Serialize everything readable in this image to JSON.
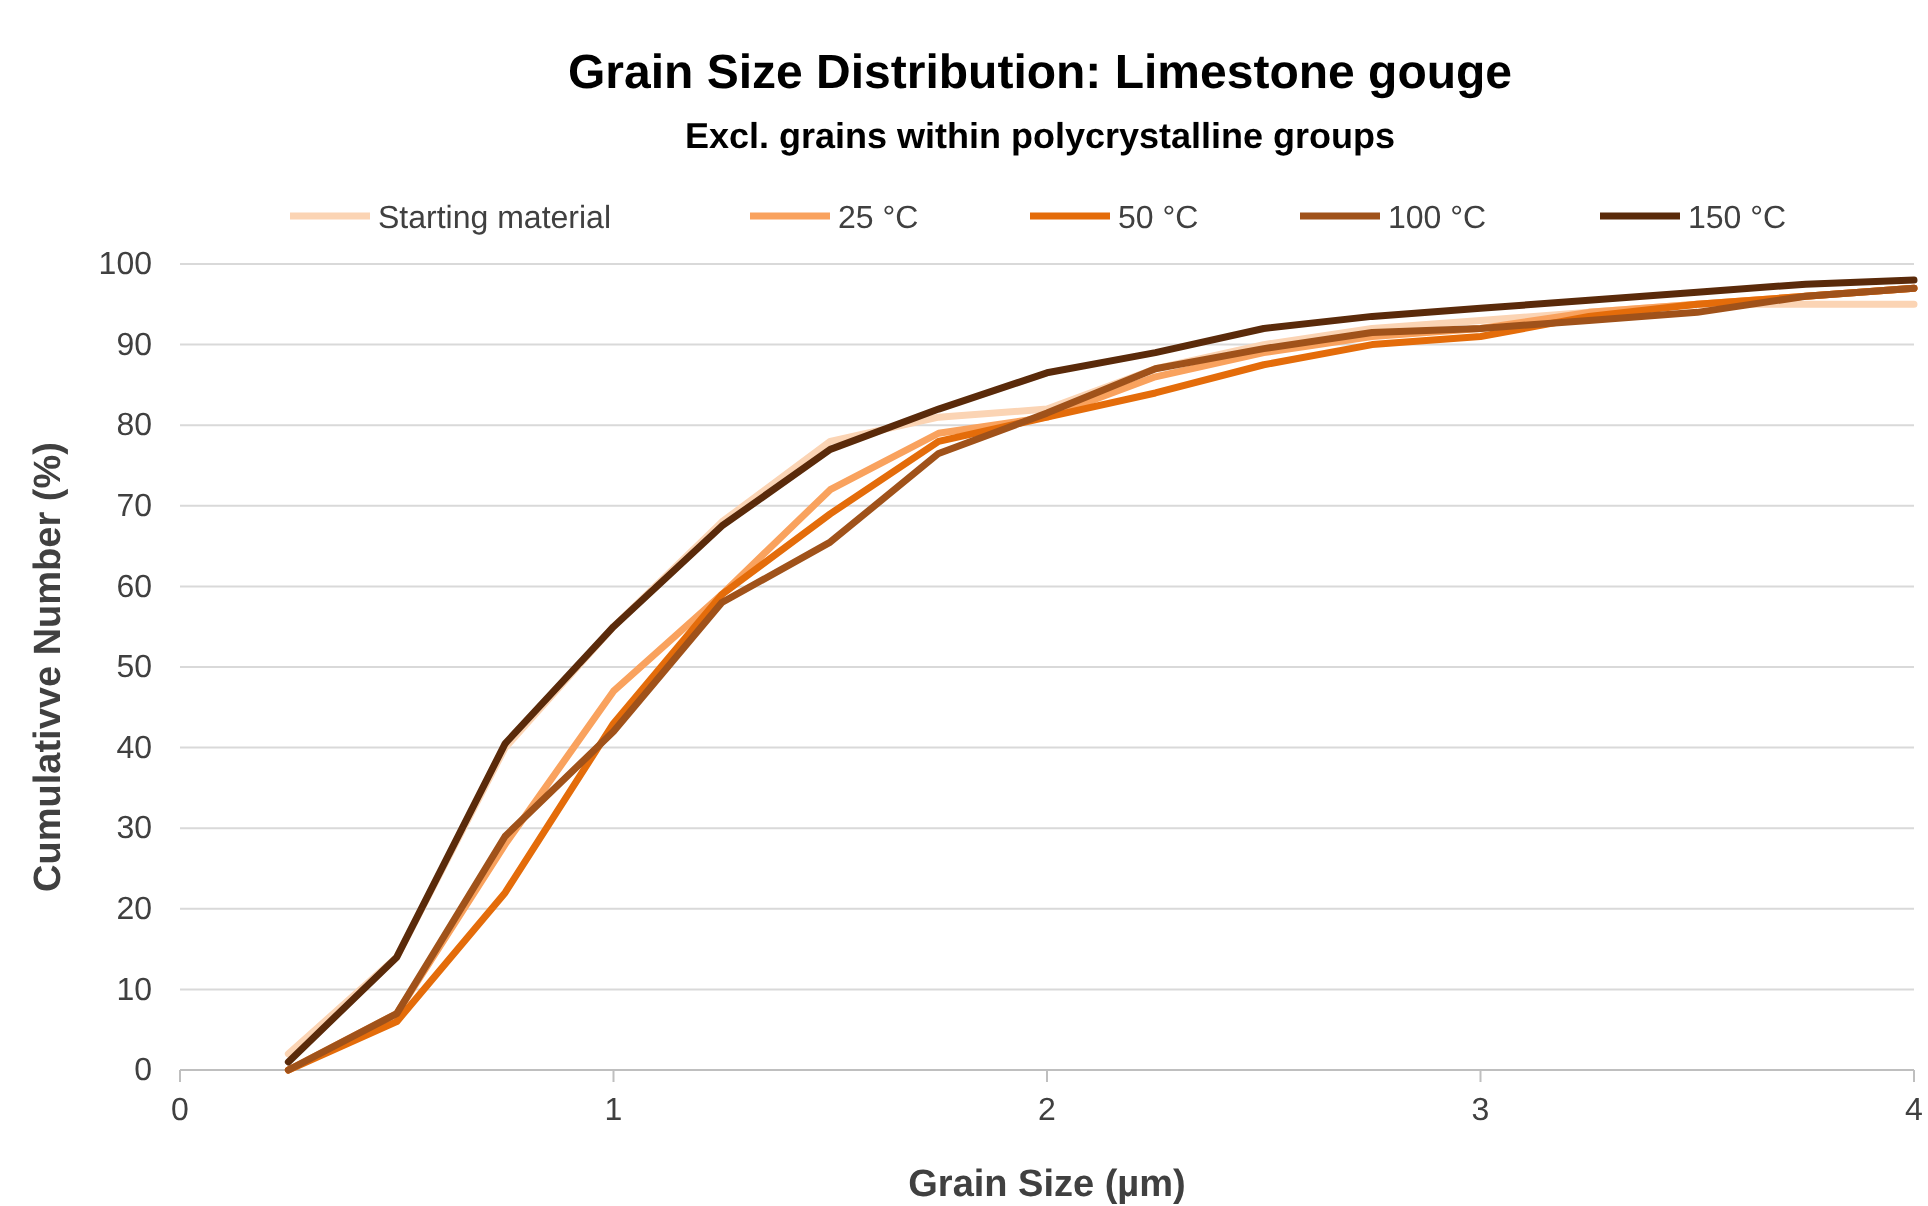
{
  "chart_data": {
    "type": "line",
    "title": "Grain Size Distribution: Limestone gouge",
    "subtitle": "Excl. grains within polycrystalline groups",
    "xlabel": "Grain Size (µm)",
    "ylabel": "Cumulativve Number (%)",
    "x": [
      0.25,
      0.5,
      0.75,
      1,
      1.25,
      1.5,
      1.75,
      2,
      2.25,
      2.5,
      2.75,
      3,
      3.25,
      3.5,
      3.75,
      4
    ],
    "series": [
      {
        "name": "Starting material",
        "color": "#fbd4b4",
        "values": [
          2,
          14,
          40,
          55,
          68,
          78,
          81,
          82,
          87,
          90,
          92,
          93,
          94,
          95,
          95,
          95
        ]
      },
      {
        "name": "25 °C",
        "color": "#f9a25e",
        "values": [
          0,
          7,
          28,
          47,
          59,
          72,
          79,
          81,
          86,
          89,
          91,
          92,
          94,
          95,
          96,
          97
        ]
      },
      {
        "name": "50 °C",
        "color": "#e46c0a",
        "values": [
          0,
          6,
          22,
          43,
          59,
          69,
          78,
          81,
          84,
          87.5,
          90,
          91,
          93.5,
          95,
          96,
          97
        ]
      },
      {
        "name": "100 °C",
        "color": "#a0521a",
        "values": [
          0,
          7,
          29,
          42,
          58,
          65.5,
          76.5,
          81.5,
          87,
          89.5,
          91.5,
          92,
          93,
          94,
          96,
          97
        ]
      },
      {
        "name": "150 °C",
        "color": "#5a2a0a",
        "values": [
          1,
          14,
          40.5,
          55,
          67.5,
          77,
          82,
          86.5,
          89,
          92,
          93.5,
          94.5,
          95.5,
          96.5,
          97.5,
          98
        ]
      }
    ],
    "xlim": [
      0,
      4
    ],
    "xticks": [
      0,
      1,
      2,
      3,
      4
    ],
    "ylim": [
      0,
      100
    ],
    "yticks": [
      0,
      10,
      20,
      30,
      40,
      50,
      60,
      70,
      80,
      90,
      100
    ],
    "grid": "y",
    "legend": "top",
    "marker": "none",
    "line_style": "solid"
  }
}
